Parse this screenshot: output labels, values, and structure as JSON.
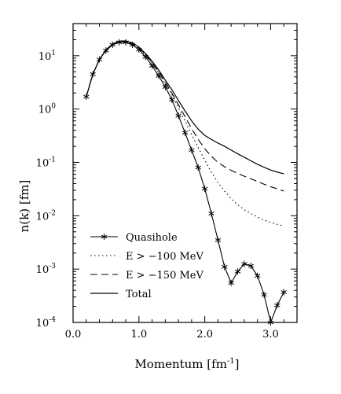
{
  "chart_data": {
    "type": "line",
    "xlabel": "Momentum [fm",
    "xlabel_sup": "-1",
    "xlabel_close": "]",
    "ylabel": "n(k) [fm]",
    "xlim": [
      0.0,
      3.4
    ],
    "ylim": [
      0.0001,
      40
    ],
    "yscale": "log",
    "grid": false,
    "legend_position": "bottom-left",
    "x_ticks": [
      {
        "value": 0.0,
        "label": "0.0"
      },
      {
        "value": 1.0,
        "label": "1.0"
      },
      {
        "value": 2.0,
        "label": "2.0"
      },
      {
        "value": 3.0,
        "label": "3.0"
      }
    ],
    "y_ticks": [
      {
        "value": 10,
        "base": "10",
        "exp": "1"
      },
      {
        "value": 1,
        "base": "10",
        "exp": "0"
      },
      {
        "value": 0.1,
        "base": "10",
        "exp": "-1"
      },
      {
        "value": 0.01,
        "base": "10",
        "exp": "-2"
      },
      {
        "value": 0.001,
        "base": "10",
        "exp": "-3"
      },
      {
        "value": 0.0001,
        "base": "10",
        "exp": "-4"
      }
    ],
    "series": [
      {
        "name": "Quasihole",
        "style": "solid-star",
        "x": [
          0.2,
          0.3,
          0.4,
          0.5,
          0.6,
          0.7,
          0.8,
          0.9,
          1.0,
          1.1,
          1.2,
          1.3,
          1.4,
          1.5,
          1.6,
          1.7,
          1.8,
          1.9,
          2.0,
          2.1,
          2.2,
          2.3,
          2.4,
          2.5,
          2.6,
          2.7,
          2.8,
          2.9,
          3.0,
          3.1,
          3.2
        ],
        "y": [
          1.7,
          4.5,
          8.5,
          12.5,
          16.0,
          17.8,
          17.8,
          16.0,
          13.0,
          9.5,
          6.5,
          4.2,
          2.6,
          1.5,
          0.75,
          0.36,
          0.17,
          0.08,
          0.032,
          0.011,
          0.0035,
          0.0011,
          0.00055,
          0.0009,
          0.00125,
          0.00115,
          0.00075,
          0.00033,
          0.0001,
          0.00021,
          0.00037
        ]
      },
      {
        "name": "E > −100 MeV",
        "style": "dotted",
        "x": [
          0.2,
          0.3,
          0.4,
          0.5,
          0.6,
          0.7,
          0.8,
          0.9,
          1.0,
          1.1,
          1.2,
          1.3,
          1.4,
          1.5,
          1.6,
          1.7,
          1.8,
          1.9,
          2.0,
          2.1,
          2.2,
          2.3,
          2.4,
          2.5,
          2.6,
          2.7,
          2.8,
          2.9,
          3.0,
          3.1,
          3.2
        ],
        "y": [
          1.7,
          4.5,
          8.5,
          12.7,
          16.4,
          18.3,
          18.4,
          16.7,
          13.8,
          10.3,
          7.2,
          4.8,
          3.0,
          1.85,
          1.05,
          0.6,
          0.33,
          0.19,
          0.11,
          0.065,
          0.042,
          0.029,
          0.021,
          0.016,
          0.013,
          0.011,
          0.0095,
          0.0083,
          0.0075,
          0.0069,
          0.0064
        ]
      },
      {
        "name": "E > −150 MeV",
        "style": "dashed",
        "x": [
          0.2,
          0.3,
          0.4,
          0.5,
          0.6,
          0.7,
          0.8,
          0.9,
          1.0,
          1.1,
          1.2,
          1.3,
          1.4,
          1.5,
          1.6,
          1.7,
          1.8,
          1.9,
          2.0,
          2.1,
          2.2,
          2.3,
          2.4,
          2.5,
          2.6,
          2.7,
          2.8,
          2.9,
          3.0,
          3.1,
          3.2
        ],
        "y": [
          1.7,
          4.5,
          8.5,
          12.8,
          16.5,
          18.5,
          18.7,
          17.0,
          14.1,
          10.6,
          7.5,
          5.0,
          3.2,
          2.0,
          1.2,
          0.72,
          0.43,
          0.27,
          0.18,
          0.13,
          0.1,
          0.083,
          0.071,
          0.062,
          0.055,
          0.049,
          0.044,
          0.039,
          0.035,
          0.032,
          0.029
        ]
      },
      {
        "name": "Total",
        "style": "solid",
        "x": [
          0.2,
          0.3,
          0.4,
          0.5,
          0.6,
          0.7,
          0.8,
          0.9,
          1.0,
          1.1,
          1.2,
          1.3,
          1.4,
          1.5,
          1.6,
          1.7,
          1.8,
          1.9,
          2.0,
          2.1,
          2.2,
          2.3,
          2.4,
          2.5,
          2.6,
          2.7,
          2.8,
          2.9,
          3.0,
          3.1,
          3.2
        ],
        "y": [
          1.7,
          4.5,
          8.5,
          12.9,
          16.7,
          18.8,
          19.0,
          17.4,
          14.5,
          11.0,
          7.9,
          5.4,
          3.5,
          2.3,
          1.45,
          0.92,
          0.6,
          0.42,
          0.32,
          0.27,
          0.23,
          0.2,
          0.17,
          0.145,
          0.125,
          0.107,
          0.092,
          0.081,
          0.072,
          0.066,
          0.061
        ]
      }
    ]
  }
}
